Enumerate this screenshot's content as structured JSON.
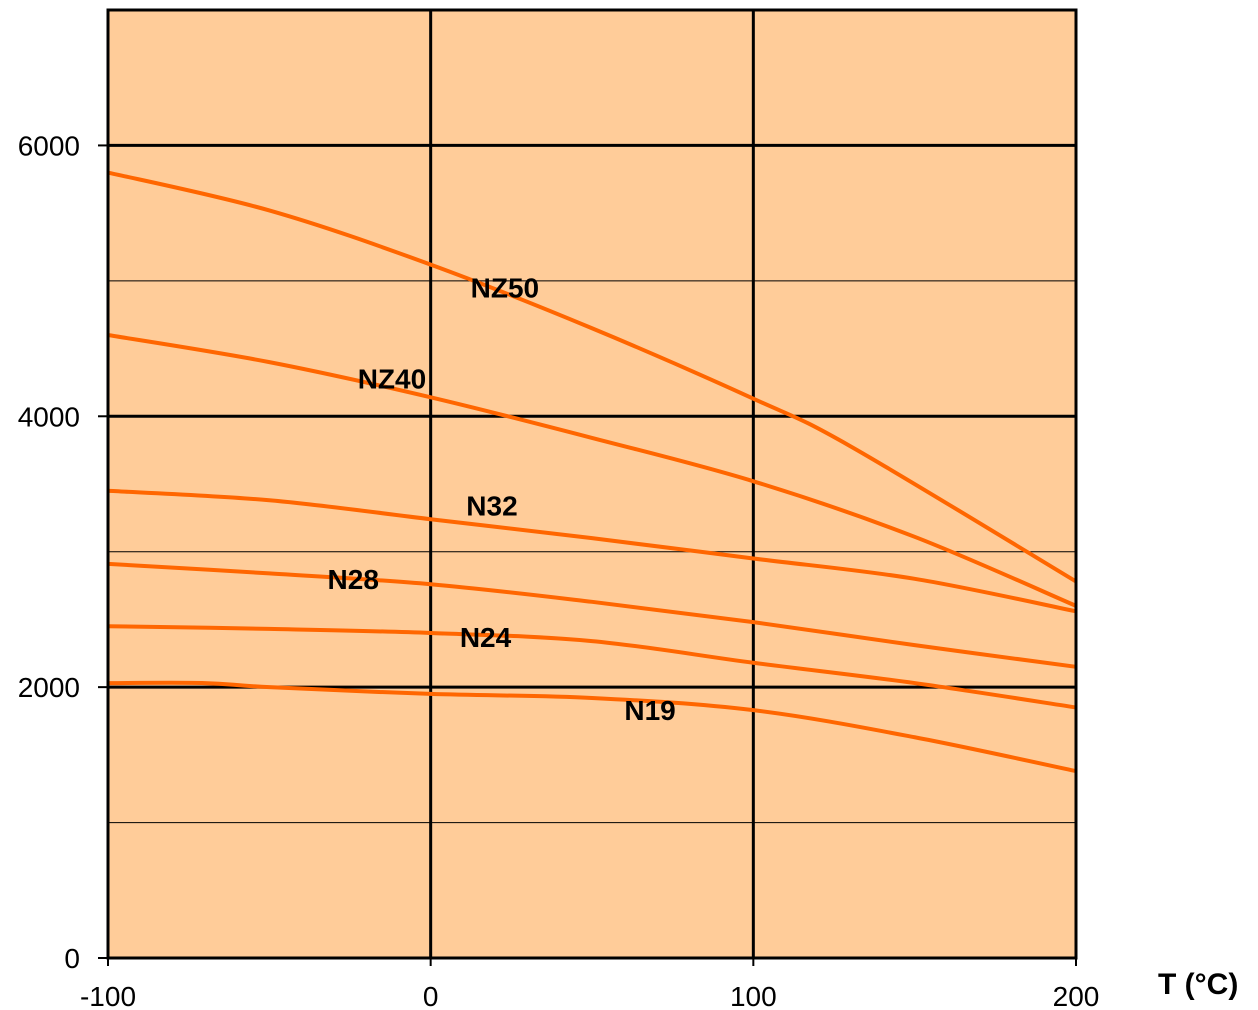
{
  "chart_data": {
    "type": "line",
    "xlabel": "T (°C)",
    "ylabel": "",
    "xlim": [
      -100,
      200
    ],
    "ylim": [
      0,
      7000
    ],
    "x_ticks": [
      -100,
      0,
      100,
      200
    ],
    "x_tick_labels": [
      "-100",
      "0",
      "100",
      "200"
    ],
    "y_ticks": [
      0,
      2000,
      4000,
      6000
    ],
    "y_tick_labels": [
      "0",
      "2000",
      "4000",
      "6000"
    ],
    "major_gridlines_y": [
      2000,
      4000,
      6000
    ],
    "minor_gridlines_y": [
      1000,
      3000,
      5000
    ],
    "grid": true,
    "colors": {
      "plot_background": "#FFCC99",
      "line": "#FF6600",
      "grid": "#000000"
    },
    "series": [
      {
        "name": "NZ50",
        "x": [
          -100,
          -50,
          0,
          50,
          100,
          130,
          200
        ],
        "y": [
          5800,
          5520,
          5120,
          4650,
          4130,
          3780,
          2780
        ],
        "label_at": [
          23,
          4950
        ]
      },
      {
        "name": "NZ40",
        "x": [
          -100,
          -50,
          0,
          50,
          100,
          150,
          200
        ],
        "y": [
          4600,
          4400,
          4140,
          3840,
          3520,
          3110,
          2600
        ],
        "label_at": [
          -12,
          4280
        ]
      },
      {
        "name": "N32",
        "x": [
          -100,
          -50,
          0,
          50,
          100,
          150,
          200
        ],
        "y": [
          3450,
          3380,
          3240,
          3100,
          2950,
          2800,
          2560
        ],
        "label_at": [
          19,
          3340
        ]
      },
      {
        "name": "N28",
        "x": [
          -100,
          -50,
          0,
          50,
          100,
          150,
          200
        ],
        "y": [
          2910,
          2840,
          2760,
          2630,
          2480,
          2310,
          2150
        ],
        "label_at": [
          -24,
          2800
        ]
      },
      {
        "name": "N24",
        "x": [
          -100,
          -50,
          0,
          50,
          100,
          150,
          200
        ],
        "y": [
          2450,
          2430,
          2400,
          2340,
          2180,
          2030,
          1850
        ],
        "label_at": [
          17,
          2370
        ]
      },
      {
        "name": "N19",
        "x": [
          -100,
          -70,
          -50,
          0,
          50,
          100,
          150,
          200
        ],
        "y": [
          2030,
          2030,
          2000,
          1950,
          1920,
          1830,
          1630,
          1380
        ],
        "label_at": [
          68,
          1830
        ]
      }
    ]
  }
}
